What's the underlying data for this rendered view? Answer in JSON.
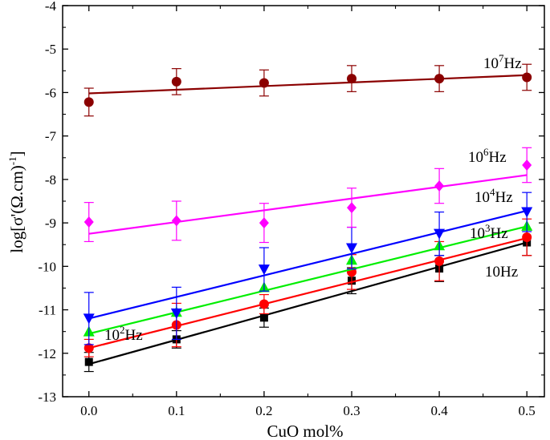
{
  "chart_data": {
    "type": "scatter",
    "xlabel": "CuO mol%",
    "ylabel": "log[σ'(Ω.cm)",
    "ylabel_sup": "-1",
    "xlim": [
      -0.03,
      0.52
    ],
    "ylim": [
      -13,
      -4
    ],
    "xticks": [
      "0.0",
      "0.1",
      "0.2",
      "0.3",
      "0.4",
      "0.5"
    ],
    "yticks": [
      "-13",
      "-12",
      "-11",
      "-10",
      "-9",
      "-8",
      "-7",
      "-6",
      "-5",
      "-4"
    ],
    "grid": false,
    "x": [
      0.0,
      0.1,
      0.2,
      0.3,
      0.4,
      0.5
    ],
    "series": [
      {
        "name": "10Hz",
        "label_base": "10Hz",
        "label_exp": "",
        "color": "#000000",
        "marker": "square",
        "values": [
          -12.2,
          -11.68,
          -11.18,
          -10.33,
          -10.05,
          -9.45
        ],
        "errors": [
          0.22,
          0.2,
          0.22,
          0.3,
          0.3,
          0.3
        ],
        "fit": [
          -12.25,
          -9.45
        ]
      },
      {
        "name": "10²Hz",
        "label_base": "10",
        "label_exp": "2",
        "label_suffix": "Hz",
        "color": "#ff0000",
        "marker": "circle",
        "values": [
          -11.88,
          -11.35,
          -10.87,
          -10.13,
          -9.88,
          -9.33
        ],
        "errors": [
          0.2,
          0.5,
          0.22,
          0.4,
          0.45,
          0.42
        ],
        "fit": [
          -11.88,
          -9.35
        ]
      },
      {
        "name": "10³Hz",
        "label_base": "10",
        "label_exp": "3",
        "label_suffix": "Hz",
        "color": "#00ee00",
        "marker": "triangle-up",
        "values": [
          -11.5,
          -11.05,
          -10.48,
          -9.85,
          -9.52,
          -9.07
        ],
        "errors": [
          0.0,
          0.0,
          0.0,
          0.0,
          0.0,
          0.0
        ],
        "fit": [
          -11.55,
          -9.08
        ]
      },
      {
        "name": "10⁴Hz",
        "label_base": "10",
        "label_exp": "4",
        "label_suffix": "Hz",
        "color": "#0000ff",
        "marker": "triangle-down",
        "values": [
          -11.2,
          -11.08,
          -10.07,
          -9.58,
          -9.25,
          -8.75
        ],
        "errors": [
          0.6,
          0.6,
          0.5,
          0.48,
          0.5,
          0.45
        ],
        "fit": [
          -11.2,
          -8.72
        ]
      },
      {
        "name": "10⁶Hz",
        "label_base": "10",
        "label_exp": "6",
        "label_suffix": "Hz",
        "color": "#ff00ff",
        "marker": "diamond",
        "values": [
          -8.98,
          -8.95,
          -9.0,
          -8.65,
          -8.15,
          -7.67
        ],
        "errors": [
          0.45,
          0.45,
          0.45,
          0.45,
          0.4,
          0.4
        ],
        "fit": [
          -9.25,
          -7.9
        ]
      },
      {
        "name": "10⁷Hz",
        "label_base": "10",
        "label_exp": "7",
        "label_suffix": "Hz",
        "color": "#8b0000",
        "marker": "circle",
        "values": [
          -6.22,
          -5.75,
          -5.78,
          -5.68,
          -5.68,
          -5.65
        ],
        "errors": [
          0.32,
          0.3,
          0.3,
          0.3,
          0.3,
          0.3
        ],
        "fit": [
          -6.02,
          -5.6
        ]
      }
    ]
  }
}
